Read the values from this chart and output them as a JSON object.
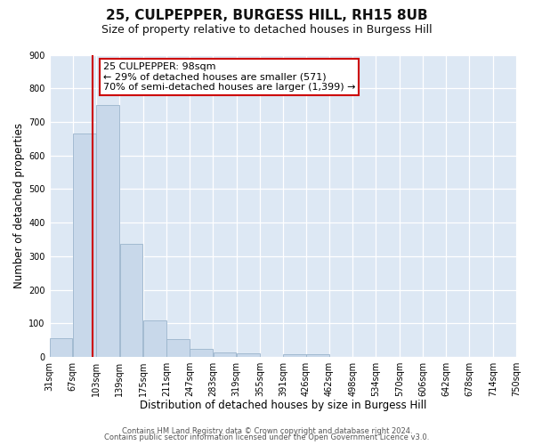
{
  "title": "25, CULPEPPER, BURGESS HILL, RH15 8UB",
  "subtitle": "Size of property relative to detached houses in Burgess Hill",
  "xlabel": "Distribution of detached houses by size in Burgess Hill",
  "ylabel": "Number of detached properties",
  "bin_edges": [
    31,
    67,
    103,
    139,
    175,
    211,
    247,
    283,
    319,
    355,
    391,
    426,
    462,
    498,
    534,
    570,
    606,
    642,
    678,
    714,
    750
  ],
  "bin_counts": [
    55,
    665,
    750,
    337,
    108,
    53,
    25,
    14,
    10,
    0,
    8,
    8,
    0,
    0,
    0,
    0,
    0,
    0,
    0,
    0
  ],
  "bar_color": "#c8d8ea",
  "bar_edgecolor": "#9ab4cc",
  "property_line_x": 98,
  "property_line_color": "#cc0000",
  "annotation_line1": "25 CULPEPPER: 98sqm",
  "annotation_line2": "← 29% of detached houses are smaller (571)",
  "annotation_line3": "70% of semi-detached houses are larger (1,399) →",
  "annotation_box_color": "#cc0000",
  "ylim": [
    0,
    900
  ],
  "yticks": [
    0,
    100,
    200,
    300,
    400,
    500,
    600,
    700,
    800,
    900
  ],
  "tick_labels": [
    "31sqm",
    "67sqm",
    "103sqm",
    "139sqm",
    "175sqm",
    "211sqm",
    "247sqm",
    "283sqm",
    "319sqm",
    "355sqm",
    "391sqm",
    "426sqm",
    "462sqm",
    "498sqm",
    "534sqm",
    "570sqm",
    "606sqm",
    "642sqm",
    "678sqm",
    "714sqm",
    "750sqm"
  ],
  "footer_line1": "Contains HM Land Registry data © Crown copyright and database right 2024.",
  "footer_line2": "Contains public sector information licensed under the Open Government Licence v3.0.",
  "fig_bg_color": "#ffffff",
  "plot_bg_color": "#dde8f4",
  "grid_color": "#ffffff",
  "title_fontsize": 11,
  "subtitle_fontsize": 9,
  "axis_label_fontsize": 8.5,
  "tick_fontsize": 7,
  "annotation_fontsize": 8,
  "footer_fontsize": 6
}
